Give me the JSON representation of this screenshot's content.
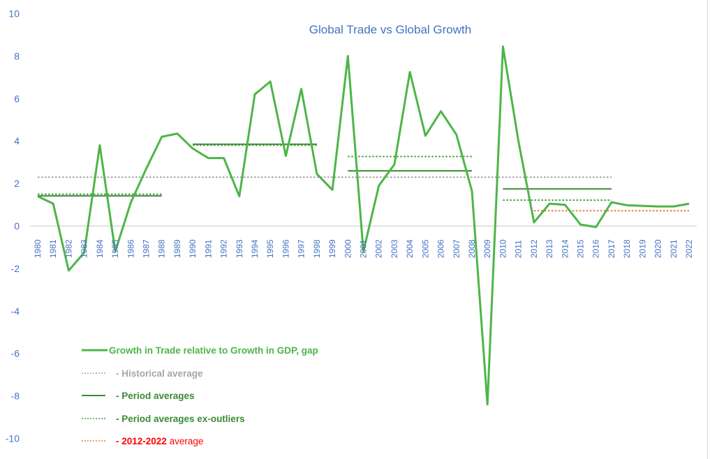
{
  "chart_data": {
    "type": "line",
    "title": "Global Trade vs Global Growth",
    "xlabel": "",
    "ylabel": "",
    "ylim": [
      -10,
      10
    ],
    "yticks": [
      10,
      8,
      6,
      4,
      2,
      0,
      -2,
      -4,
      -6,
      -8,
      -10
    ],
    "grid": false,
    "legend_position": "lower-left inside",
    "categories": [
      "1980",
      "1981",
      "1982",
      "1983",
      "1984",
      "1985",
      "1986",
      "1987",
      "1988",
      "1989",
      "1990",
      "1991",
      "1992",
      "1993",
      "1994",
      "1995",
      "1996",
      "1997",
      "1998",
      "1999",
      "2000",
      "2001",
      "2002",
      "2003",
      "2004",
      "2005",
      "2006",
      "2007",
      "2008",
      "2009",
      "2010",
      "2011",
      "2012",
      "2013",
      "2014",
      "2015",
      "2016",
      "2017",
      "2018",
      "2019",
      "2020",
      "2021",
      "2022"
    ],
    "series": [
      {
        "name": "Growth in Trade relative to Growth in GDP, gap",
        "style": "solid",
        "color": "#4db548",
        "values": [
          1.4,
          1.05,
          -2.1,
          -1.25,
          3.8,
          -1.2,
          1.1,
          2.7,
          4.2,
          4.35,
          3.65,
          3.2,
          3.2,
          1.4,
          6.2,
          6.8,
          3.3,
          6.45,
          2.45,
          1.7,
          8.0,
          -1.2,
          1.9,
          2.9,
          7.25,
          4.25,
          5.4,
          4.3,
          1.65,
          -8.4,
          8.45,
          4.0,
          0.17,
          1.05,
          1.0,
          0.07,
          -0.05,
          1.12,
          0.98,
          0.95,
          0.92,
          0.92,
          1.05
        ]
      }
    ],
    "reference_lines": [
      {
        "name": "Historical average",
        "style": "dotted",
        "color": "#a6a6a6",
        "value": 2.3,
        "from": "1980",
        "to": "2017"
      },
      {
        "name": "Period averages",
        "style": "solid",
        "color": "#3a8a34",
        "segments": [
          {
            "from": "1980",
            "to": "1988",
            "value": 1.42
          },
          {
            "from": "1990",
            "to": "1998",
            "value": 3.85
          },
          {
            "from": "2000",
            "to": "2008",
            "value": 2.6
          },
          {
            "from": "2010",
            "to": "2017",
            "value": 1.75
          }
        ]
      },
      {
        "name": "Period averages ex-outliers",
        "style": "dotted",
        "color": "#4e9a45",
        "segments": [
          {
            "from": "1980",
            "to": "1988",
            "value": 1.5
          },
          {
            "from": "1990",
            "to": "1998",
            "value": 3.8
          },
          {
            "from": "2000",
            "to": "2008",
            "value": 3.27
          },
          {
            "from": "2010",
            "to": "2017",
            "value": 1.22
          }
        ]
      },
      {
        "name": "2012-2022 average",
        "style": "dotted",
        "color": "#ed7d31",
        "value": 0.72,
        "from": "2012",
        "to": "2022"
      }
    ]
  },
  "legend": {
    "items": [
      {
        "label": "Growth in Trade relative to Growth in GDP, gap",
        "color": "#4db548",
        "swatch": "solid-thick",
        "swatch_color": "#4db548"
      },
      {
        "label": "- Historical average",
        "color": "#a6a6a6",
        "swatch": "dotted",
        "swatch_color": "#a6a6a6"
      },
      {
        "label": "- Period averages",
        "color": "#3a8a34",
        "swatch": "solid",
        "swatch_color": "#3a8a34"
      },
      {
        "label": "- Period averages ex-outliers",
        "color": "#3a8a34",
        "swatch": "dotted",
        "swatch_color": "#4e9a45"
      },
      {
        "label": "- 2012-2022 average",
        "color": "#ff0000",
        "swatch": "dotted",
        "swatch_color": "#ed7d31"
      }
    ]
  },
  "colors": {
    "axis_text": "#4472c4",
    "zero_line": "#d9d9d9"
  }
}
